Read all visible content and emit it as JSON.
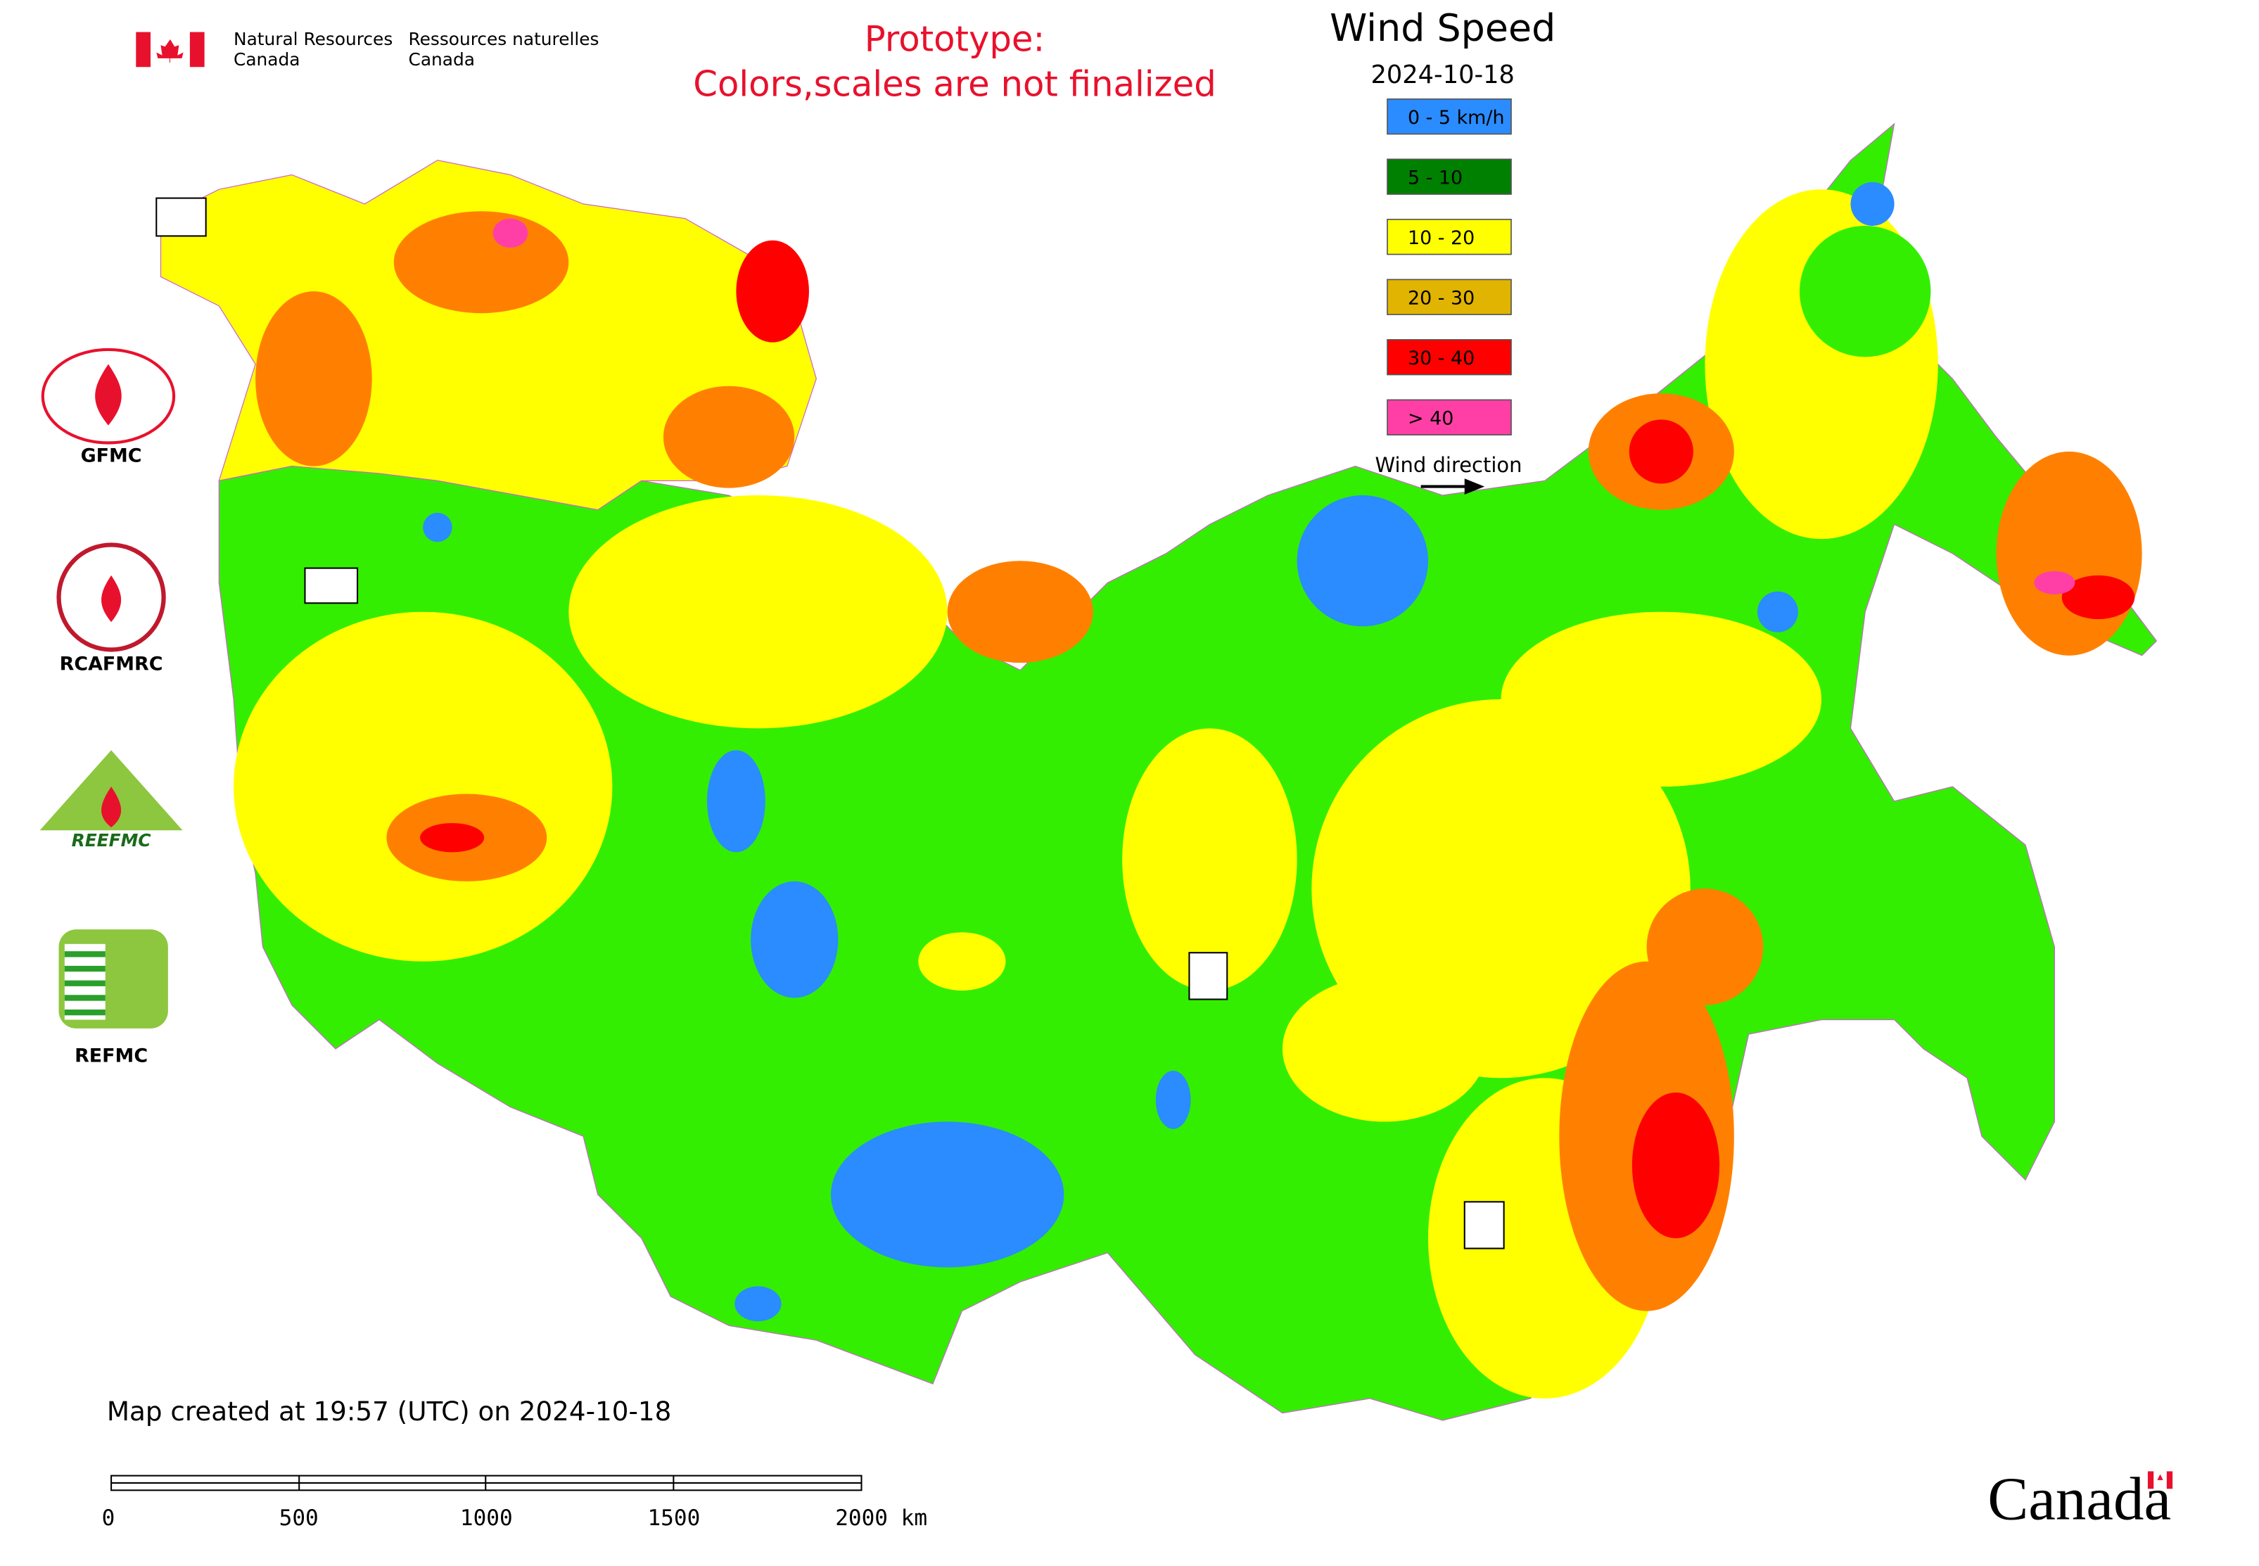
{
  "header": {
    "agency_en": [
      "Natural Resources",
      "Canada"
    ],
    "agency_fr": [
      "Ressources naturelles",
      "Canada"
    ]
  },
  "notice": [
    "Prototype:",
    "Colors,scales are not finalized"
  ],
  "legend": {
    "title": "Wind Speed",
    "date": "2024-10-18",
    "items": [
      "0 - 5 km/h",
      "5 - 10",
      "10 - 20",
      "20 - 30",
      "30 - 40",
      "> 40"
    ],
    "colors": [
      "#2a8cff",
      "#008000",
      "#ffff00",
      "#e0b400",
      "#ff0000",
      "#ff3fa6"
    ],
    "wind_direction": "Wind direction"
  },
  "logos": [
    "GFMC",
    "RCAFMRC",
    "REEFMC",
    "REFMC"
  ],
  "footer": {
    "created": "Map created at 19:57 (UTC) on 2024-10-18",
    "scale_labels": [
      "0",
      "500",
      "1000",
      "1500",
      "2000 km"
    ],
    "wordmark": "Canada"
  }
}
